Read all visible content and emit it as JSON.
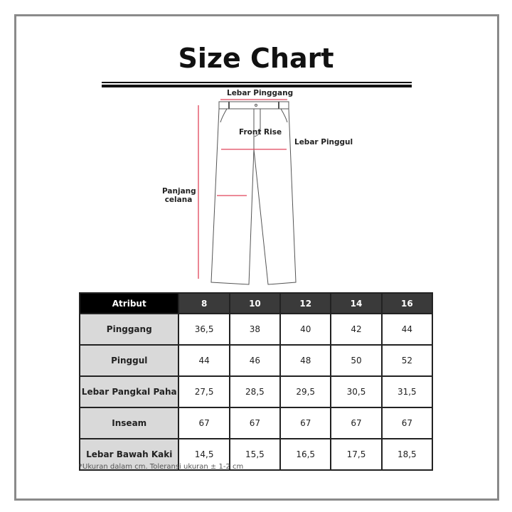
{
  "title": "Size Chart",
  "diagram": {
    "labels": {
      "waist": "Lebar Pinggang",
      "front_rise": "Front Rise",
      "hip": "Lebar Pinggul",
      "length_1": "Panjang",
      "length_2": "celana"
    },
    "accent_color": "#e0455a"
  },
  "table": {
    "headers": [
      "Atribut",
      "8",
      "10",
      "12",
      "14",
      "16"
    ],
    "rows": [
      {
        "label": "Pinggang",
        "values": [
          "36,5",
          "38",
          "40",
          "42",
          "44"
        ]
      },
      {
        "label": "Pinggul",
        "values": [
          "44",
          "46",
          "48",
          "50",
          "52"
        ]
      },
      {
        "label": "Lebar Pangkal Paha",
        "values": [
          "27,5",
          "28,5",
          "29,5",
          "30,5",
          "31,5"
        ]
      },
      {
        "label": "Inseam",
        "values": [
          "67",
          "67",
          "67",
          "67",
          "67"
        ]
      },
      {
        "label": "Lebar Bawah Kaki",
        "values": [
          "14,5",
          "15,5",
          "16,5",
          "17,5",
          "18,5"
        ]
      }
    ]
  },
  "note": "*Ukuran dalam cm. Toleransi ukuran ± 1-2 cm"
}
